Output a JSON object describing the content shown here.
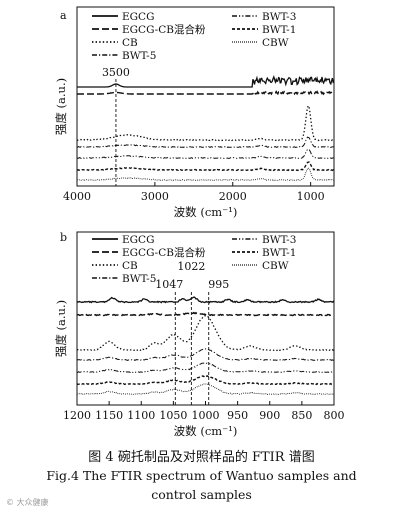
{
  "chart_data": [
    {
      "type": "line",
      "panel_label": "a",
      "xlabel": "波数 (cm⁻¹)",
      "ylabel": "强度 (a.u.)",
      "xlim": [
        4000,
        700
      ],
      "x_reversed": true,
      "x_ticks": [
        4000,
        3000,
        2000,
        1000
      ],
      "legend": [
        "EGCG",
        "EGCG-CB混合粉",
        "CB",
        "BWT-5",
        "BWT-3",
        "BWT-1",
        "CBW"
      ],
      "annotations": [
        {
          "text": "3500",
          "x": 3500
        }
      ],
      "series": [
        {
          "name": "EGCG",
          "style": "solid"
        },
        {
          "name": "EGCG-CB混合粉",
          "style": "long-dash"
        },
        {
          "name": "CB",
          "style": "dotted"
        },
        {
          "name": "BWT-5",
          "style": "dash-dot"
        },
        {
          "name": "BWT-3",
          "style": "dash-dot-dot"
        },
        {
          "name": "BWT-1",
          "style": "short-dash"
        },
        {
          "name": "CBW",
          "style": "fine-dotted"
        }
      ]
    },
    {
      "type": "line",
      "panel_label": "b",
      "xlabel": "波数 (cm⁻¹)",
      "ylabel": "强度 (a.u.)",
      "xlim": [
        1200,
        800
      ],
      "x_reversed": true,
      "x_ticks": [
        1200,
        1150,
        1100,
        1050,
        1000,
        950,
        900,
        850,
        800
      ],
      "legend": [
        "EGCG",
        "EGCG-CB混合粉",
        "CB",
        "BWT-5",
        "BWT-3",
        "BWT-1",
        "CBW"
      ],
      "annotations": [
        {
          "text": "1047",
          "x": 1047
        },
        {
          "text": "1022",
          "x": 1022
        },
        {
          "text": "995",
          "x": 995
        }
      ],
      "series": [
        {
          "name": "EGCG",
          "style": "solid"
        },
        {
          "name": "EGCG-CB混合粉",
          "style": "long-dash"
        },
        {
          "name": "CB",
          "style": "dotted"
        },
        {
          "name": "BWT-5",
          "style": "dash-dot"
        },
        {
          "name": "BWT-3",
          "style": "dash-dot-dot"
        },
        {
          "name": "BWT-1",
          "style": "short-dash"
        },
        {
          "name": "CBW",
          "style": "fine-dotted"
        }
      ]
    }
  ],
  "caption": {
    "cn": "图 4   碗托制品及对照样品的 FTIR 谱图",
    "en_line1": "Fig.4    The FTIR spectrum of Wantuo samples and",
    "en_line2": "control samples"
  },
  "watermark": "© 大众健康"
}
